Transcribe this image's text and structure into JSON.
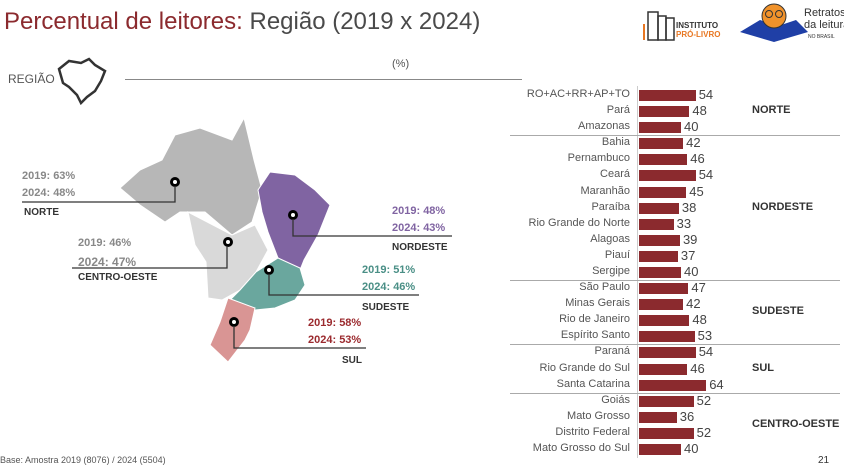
{
  "header": {
    "title_part1": "Percentual de leitores: ",
    "title_part2": "Região (2019 x 2024)",
    "logo1": "INSTITUTO PRÓ-LIVRO",
    "logo2": "Retratos da leitura NO BRASIL"
  },
  "section_label": "REGIÃO",
  "unit": "(%)",
  "colors": {
    "accent": "#8b2a2e",
    "norte": "#b7b7b7",
    "centro_oeste": "#d9d9d9",
    "nordeste": "#8064a2",
    "sudeste": "#6aa79e",
    "sul": "#d99594"
  },
  "map": [
    {
      "name": "NORTE",
      "y2019": "2019: 63%",
      "y2024": "2024: 48%",
      "color": "#888888"
    },
    {
      "name": "CENTRO-OESTE",
      "y2019": "2019: 46%",
      "y2024": "2024: 47%",
      "color": "#888888"
    },
    {
      "name": "NORDESTE",
      "y2019": "2019: 48%",
      "y2024": "2024: 43%",
      "color": "#8064a2"
    },
    {
      "name": "SUDESTE",
      "y2019": "2019: 51%",
      "y2024": "2024: 46%",
      "color": "#4a8f86"
    },
    {
      "name": "SUL",
      "y2019": "2019: 58%",
      "y2024": "2024: 53%",
      "color": "#9b2a2e"
    }
  ],
  "chart_data": {
    "type": "bar",
    "orientation": "horizontal",
    "unit": "(%)",
    "categories": [
      "RO+AC+RR+AP+TO",
      "Pará",
      "Amazonas",
      "Bahia",
      "Pernambuco",
      "Ceará",
      "Maranhão",
      "Paraíba",
      "Rio Grande do Norte",
      "Alagoas",
      "Piauí",
      "Sergipe",
      "São Paulo",
      "Minas Gerais",
      "Rio de Janeiro",
      "Espírito Santo",
      "Paraná",
      "Rio Grande do Sul",
      "Santa Catarina",
      "Goiás",
      "Mato Grosso",
      "Distrito Federal",
      "Mato Grosso do Sul"
    ],
    "values": [
      54,
      48,
      40,
      42,
      46,
      54,
      45,
      38,
      33,
      39,
      37,
      40,
      47,
      42,
      48,
      53,
      54,
      46,
      64,
      52,
      36,
      52,
      40
    ],
    "groups": [
      {
        "name": "NORTE",
        "count": 3
      },
      {
        "name": "NORDESTE",
        "count": 9
      },
      {
        "name": "SUDESTE",
        "count": 4
      },
      {
        "name": "SUL",
        "count": 3
      },
      {
        "name": "CENTRO-OESTE",
        "count": 4
      }
    ],
    "bar_color": "#8b2a2e"
  },
  "footer": {
    "base": "Base: Amostra 2019 (8076) / 2024 (5504)",
    "page": "21"
  }
}
